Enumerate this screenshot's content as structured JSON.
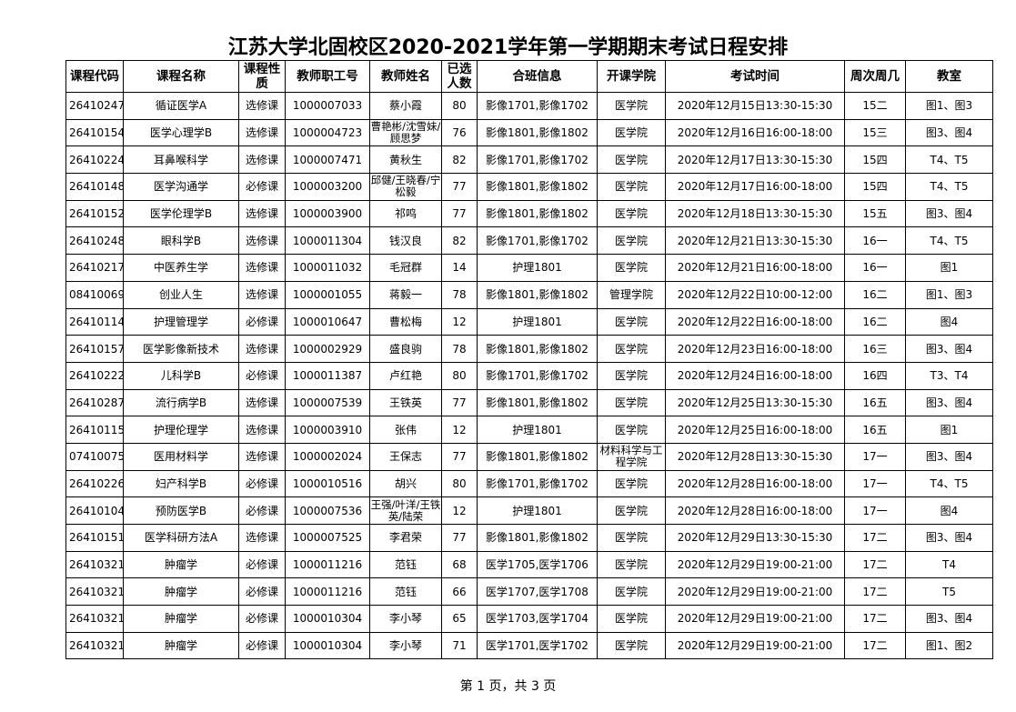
{
  "title": "江苏大学北固校区2020-2021学年第一学期期末考试日程安排",
  "columns": [
    "课程代码",
    "课程名称",
    "课程性质",
    "教师职工号",
    "教师姓名",
    "已选人数",
    "合班信息",
    "开课学院",
    "考试时间",
    "周次周几",
    "教室"
  ],
  "rows": [
    [
      "26410247",
      "循证医学A",
      "选修课",
      "1000007033",
      "蔡小霞",
      "80",
      "影像1701,影像1702",
      "医学院",
      "2020年12月15日13:30-15:30",
      "15二",
      "图1、图3"
    ],
    [
      "26410154",
      "医学心理学B",
      "选修课",
      "1000004723",
      "曹艳彬/沈雪妹/顾思梦",
      "76",
      "影像1801,影像1802",
      "医学院",
      "2020年12月16日16:00-18:00",
      "15三",
      "图3、图4"
    ],
    [
      "26410224",
      "耳鼻喉科学",
      "选修课",
      "1000007471",
      "黄秋生",
      "82",
      "影像1701,影像1702",
      "医学院",
      "2020年12月17日13:30-15:30",
      "15四",
      "T4、T5"
    ],
    [
      "26410148",
      "医学沟通学",
      "必修课",
      "1000003200",
      "邱健/王晓春/宁松毅",
      "77",
      "影像1801,影像1802",
      "医学院",
      "2020年12月17日16:00-18:00",
      "15四",
      "T4、T5"
    ],
    [
      "26410152",
      "医学伦理学B",
      "选修课",
      "1000003900",
      "祁鸣",
      "77",
      "影像1801,影像1802",
      "医学院",
      "2020年12月18日13:30-15:30",
      "15五",
      "图3、图4"
    ],
    [
      "26410248",
      "眼科学B",
      "选修课",
      "1000011304",
      "钱汉良",
      "82",
      "影像1701,影像1702",
      "医学院",
      "2020年12月21日13:30-15:30",
      "16一",
      "T4、T5"
    ],
    [
      "26410217",
      "中医养生学",
      "选修课",
      "1000011032",
      "毛冠群",
      "14",
      "护理1801",
      "医学院",
      "2020年12月21日16:00-18:00",
      "16一",
      "图1"
    ],
    [
      "08410069",
      "创业人生",
      "选修课",
      "1000001055",
      "蒋毅一",
      "78",
      "影像1801,影像1802",
      "管理学院",
      "2020年12月22日10:00-12:00",
      "16二",
      "图1、图3"
    ],
    [
      "26410114",
      "护理管理学",
      "必修课",
      "1000010647",
      "曹松梅",
      "12",
      "护理1801",
      "医学院",
      "2020年12月22日16:00-18:00",
      "16二",
      "图4"
    ],
    [
      "26410157",
      "医学影像新技术",
      "选修课",
      "1000002929",
      "盛良驹",
      "78",
      "影像1801,影像1802",
      "医学院",
      "2020年12月23日16:00-18:00",
      "16三",
      "图3、图4"
    ],
    [
      "26410222",
      "儿科学B",
      "必修课",
      "1000011387",
      "卢红艳",
      "80",
      "影像1701,影像1702",
      "医学院",
      "2020年12月24日16:00-18:00",
      "16四",
      "T3、T4"
    ],
    [
      "26410287",
      "流行病学B",
      "选修课",
      "1000007539",
      "王铁英",
      "77",
      "影像1801,影像1802",
      "医学院",
      "2020年12月25日13:30-15:30",
      "16五",
      "图3、图4"
    ],
    [
      "26410115",
      "护理伦理学",
      "选修课",
      "1000003910",
      "张伟",
      "12",
      "护理1801",
      "医学院",
      "2020年12月25日16:00-18:00",
      "16五",
      "图1"
    ],
    [
      "07410075",
      "医用材料学",
      "选修课",
      "1000002024",
      "王保志",
      "77",
      "影像1801,影像1802",
      "材料科学与工程学院",
      "2020年12月28日13:30-15:30",
      "17一",
      "图3、图4"
    ],
    [
      "26410226",
      "妇产科学B",
      "必修课",
      "1000010516",
      "胡兴",
      "80",
      "影像1701,影像1702",
      "医学院",
      "2020年12月28日16:00-18:00",
      "17一",
      "T4、T5"
    ],
    [
      "26410104",
      "预防医学B",
      "必修课",
      "1000007536",
      "王强/叶洋/王铁英/陆荣",
      "12",
      "护理1801",
      "医学院",
      "2020年12月28日16:00-18:00",
      "17一",
      "图4"
    ],
    [
      "26410151",
      "医学科研方法A",
      "选修课",
      "1000007525",
      "李君荣",
      "77",
      "影像1801,影像1802",
      "医学院",
      "2020年12月29日13:30-15:30",
      "17二",
      "图3、图4"
    ],
    [
      "26410321",
      "肿瘤学",
      "必修课",
      "1000011216",
      "范钰",
      "68",
      "医学1705,医学1706",
      "医学院",
      "2020年12月29日19:00-21:00",
      "17二",
      "T4"
    ],
    [
      "26410321",
      "肿瘤学",
      "必修课",
      "1000011216",
      "范钰",
      "66",
      "医学1707,医学1708",
      "医学院",
      "2020年12月29日19:00-21:00",
      "17二",
      "T5"
    ],
    [
      "26410321",
      "肿瘤学",
      "必修课",
      "1000010304",
      "李小琴",
      "65",
      "医学1703,医学1704",
      "医学院",
      "2020年12月29日19:00-21:00",
      "17二",
      "图3、图4"
    ],
    [
      "26410321",
      "肿瘤学",
      "必修课",
      "1000010304",
      "李小琴",
      "71",
      "医学1701,医学1702",
      "医学院",
      "2020年12月29日19:00-21:00",
      "17二",
      "图1、图2"
    ]
  ],
  "footer": "第 1 页，共 3 页"
}
